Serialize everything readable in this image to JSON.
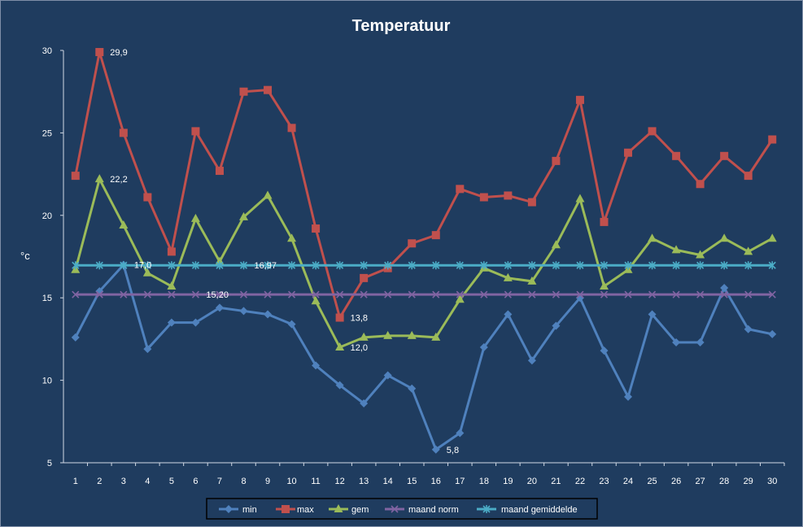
{
  "chart_data": {
    "type": "line",
    "title": "Temperatuur",
    "xlabel": "",
    "ylabel": "°c",
    "ylim": [
      5,
      30
    ],
    "yticks": [
      5,
      10,
      15,
      20,
      25,
      30
    ],
    "x": [
      1,
      2,
      3,
      4,
      5,
      6,
      7,
      8,
      9,
      10,
      11,
      12,
      13,
      14,
      15,
      16,
      17,
      18,
      19,
      20,
      21,
      22,
      23,
      24,
      25,
      26,
      27,
      28,
      29,
      30
    ],
    "grid": false,
    "legend_position": "bottom",
    "series": [
      {
        "name": "min",
        "color": "#4f81bd",
        "marker": "diamond",
        "values": [
          12.6,
          15.4,
          17.0,
          11.9,
          13.5,
          13.5,
          14.4,
          14.2,
          14.0,
          13.4,
          10.9,
          9.7,
          8.6,
          10.3,
          9.5,
          5.8,
          6.8,
          12.0,
          14.0,
          11.2,
          13.3,
          15.0,
          11.8,
          9.0,
          14.0,
          12.3,
          12.3,
          15.6,
          13.1,
          12.8
        ]
      },
      {
        "name": "max",
        "color": "#c0504d",
        "marker": "square",
        "values": [
          22.4,
          29.9,
          25.0,
          21.1,
          17.8,
          25.1,
          22.7,
          27.5,
          27.6,
          25.3,
          19.2,
          13.8,
          16.2,
          16.8,
          18.3,
          18.8,
          21.6,
          21.1,
          21.2,
          20.8,
          23.3,
          27.0,
          19.6,
          23.8,
          25.1,
          23.6,
          21.9,
          23.6,
          22.4,
          24.6
        ]
      },
      {
        "name": "gem",
        "color": "#9bbb59",
        "marker": "triangle",
        "values": [
          16.7,
          22.2,
          19.4,
          16.5,
          15.7,
          19.8,
          17.2,
          19.9,
          21.2,
          18.6,
          14.8,
          12.0,
          12.6,
          12.7,
          12.7,
          12.6,
          14.9,
          16.8,
          16.2,
          16.0,
          18.2,
          21.0,
          15.7,
          16.7,
          18.6,
          17.9,
          17.6,
          18.6,
          17.8,
          18.6
        ]
      },
      {
        "name": "maand norm",
        "color": "#8064a2",
        "marker": "x",
        "values": [
          15.2,
          15.2,
          15.2,
          15.2,
          15.2,
          15.2,
          15.2,
          15.2,
          15.2,
          15.2,
          15.2,
          15.2,
          15.2,
          15.2,
          15.2,
          15.2,
          15.2,
          15.2,
          15.2,
          15.2,
          15.2,
          15.2,
          15.2,
          15.2,
          15.2,
          15.2,
          15.2,
          15.2,
          15.2,
          15.2
        ]
      },
      {
        "name": "maand gemiddelde",
        "color": "#4bacc6",
        "marker": "star",
        "values": [
          16.97,
          16.97,
          16.97,
          16.97,
          16.97,
          16.97,
          16.97,
          16.97,
          16.97,
          16.97,
          16.97,
          16.97,
          16.97,
          16.97,
          16.97,
          16.97,
          16.97,
          16.97,
          16.97,
          16.97,
          16.97,
          16.97,
          16.97,
          16.97,
          16.97,
          16.97,
          16.97,
          16.97,
          16.97,
          16.97
        ]
      }
    ],
    "annotations": [
      {
        "text": "29,9",
        "series": "max",
        "x": 2
      },
      {
        "text": "22,2",
        "series": "gem",
        "x": 2
      },
      {
        "text": "17,0",
        "series": "min",
        "x": 3
      },
      {
        "text": "16,97",
        "series": "maand gemiddelde",
        "x": 8
      },
      {
        "text": "15,20",
        "series": "maand norm",
        "x": 6
      },
      {
        "text": "13,8",
        "series": "max",
        "x": 12
      },
      {
        "text": "12,0",
        "series": "gem",
        "x": 12
      },
      {
        "text": "5,8",
        "series": "min",
        "x": 16
      }
    ]
  }
}
